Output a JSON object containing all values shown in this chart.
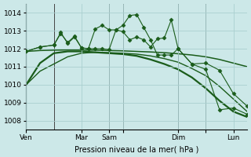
{
  "background_color": "#cce8e8",
  "grid_color": "#aacfcf",
  "line_color": "#1a5c1a",
  "xlabel": "Pression niveau de la mer( hPa )",
  "ylim": [
    1007.5,
    1014.5
  ],
  "yticks": [
    1008,
    1009,
    1010,
    1011,
    1012,
    1013,
    1014
  ],
  "xlim": [
    0,
    96
  ],
  "xtick_positions": [
    0,
    24,
    36,
    42,
    66,
    78,
    90
  ],
  "xtick_labels": [
    "Ven",
    "Mar",
    "Sam",
    "",
    "Dim",
    "",
    "Lun"
  ],
  "vlines": [
    12,
    36,
    42,
    66,
    78
  ],
  "series1_x": [
    0,
    6,
    12,
    18,
    24,
    30,
    36,
    42,
    48,
    54,
    60,
    66,
    72,
    78,
    84,
    90,
    96
  ],
  "series1_y": [
    1010.0,
    1011.2,
    1011.75,
    1011.85,
    1011.85,
    1011.8,
    1011.75,
    1011.7,
    1011.6,
    1011.4,
    1011.15,
    1010.85,
    1010.4,
    1009.8,
    1009.1,
    1008.5,
    1008.2
  ],
  "series2_x": [
    0,
    6,
    12,
    18,
    24,
    30,
    36,
    42,
    48,
    54,
    60,
    66,
    72,
    78,
    84,
    90,
    96
  ],
  "series2_y": [
    1011.85,
    1011.9,
    1011.92,
    1011.93,
    1011.93,
    1011.92,
    1011.9,
    1011.88,
    1011.85,
    1011.82,
    1011.78,
    1011.72,
    1011.65,
    1011.55,
    1011.4,
    1011.2,
    1011.0
  ],
  "series3_x": [
    0,
    6,
    12,
    15,
    18,
    21,
    24,
    27,
    30,
    33,
    36,
    39,
    42,
    45,
    48,
    51,
    54,
    57,
    60,
    63,
    66,
    72,
    78,
    84,
    90,
    96
  ],
  "series3_y": [
    1011.85,
    1012.1,
    1012.2,
    1012.85,
    1012.35,
    1012.7,
    1012.05,
    1012.0,
    1012.0,
    1012.0,
    1011.95,
    1013.05,
    1013.3,
    1013.85,
    1013.9,
    1013.2,
    1012.5,
    1011.65,
    1011.65,
    1011.65,
    1012.0,
    1011.15,
    1011.2,
    1010.8,
    1009.5,
    1008.8
  ],
  "series4_x": [
    0,
    6,
    12,
    15,
    18,
    21,
    24,
    27,
    30,
    33,
    36,
    39,
    42,
    45,
    48,
    51,
    54,
    57,
    60,
    63,
    66,
    72,
    78,
    84,
    90,
    96
  ],
  "series4_y": [
    1011.85,
    1012.1,
    1012.2,
    1012.9,
    1012.3,
    1012.65,
    1012.05,
    1012.0,
    1013.1,
    1013.3,
    1013.05,
    1013.05,
    1012.95,
    1012.5,
    1012.65,
    1012.5,
    1012.1,
    1012.55,
    1012.6,
    1013.6,
    1012.0,
    1011.15,
    1010.85,
    1008.6,
    1008.7,
    1008.35
  ],
  "series5_x": [
    0,
    6,
    12,
    18,
    24,
    30,
    36,
    42,
    48,
    54,
    60,
    66,
    72,
    78,
    84,
    90,
    96
  ],
  "series5_y": [
    1010.0,
    1010.75,
    1011.15,
    1011.55,
    1011.75,
    1011.8,
    1011.78,
    1011.75,
    1011.7,
    1011.6,
    1011.45,
    1011.25,
    1010.9,
    1010.5,
    1009.9,
    1009.2,
    1008.5
  ]
}
